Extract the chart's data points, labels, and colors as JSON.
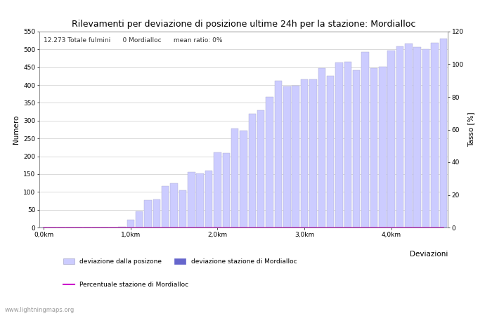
{
  "title": "Rilevamenti per deviazione di posizione ultime 24h per la stazione: Mordialloc",
  "subtitle": "12.273 Totale fulmini      0 Mordialloc      mean ratio: 0%",
  "xlabel": "Deviazioni",
  "ylabel_left": "Numero",
  "ylabel_right": "Tasso [%]",
  "bar_values": [
    0,
    0,
    0,
    0,
    0,
    0,
    0,
    0,
    0,
    1,
    22,
    46,
    77,
    78,
    116,
    125,
    105,
    155,
    152,
    160,
    210,
    209,
    278,
    272,
    320,
    330,
    367,
    412,
    397,
    398,
    415,
    416,
    448,
    425,
    463,
    465,
    441,
    493,
    448,
    451,
    497,
    508,
    516,
    507,
    500,
    519,
    531
  ],
  "bar_color": "#ccccff",
  "bar_edge_color": "#aaaacc",
  "station_bar_values": [
    0,
    0,
    0,
    0,
    0,
    0,
    0,
    0,
    0,
    0,
    0,
    0,
    0,
    0,
    0,
    0,
    0,
    0,
    0,
    0,
    0,
    0,
    0,
    0,
    0,
    0,
    0,
    0,
    0,
    0,
    0,
    0,
    0,
    0,
    0,
    0,
    0,
    0,
    0,
    0,
    0,
    0,
    0,
    0,
    0,
    0,
    0
  ],
  "station_bar_color": "#6666cc",
  "ratio_values": [
    0,
    0,
    0,
    0,
    0,
    0,
    0,
    0,
    0,
    0,
    0,
    0,
    0,
    0,
    0,
    0,
    0,
    0,
    0,
    0,
    0,
    0,
    0,
    0,
    0,
    0,
    0,
    0,
    0,
    0,
    0,
    0,
    0,
    0,
    0,
    0,
    0,
    0,
    0,
    0,
    0,
    0,
    0,
    0,
    0,
    0,
    0
  ],
  "ratio_color": "#cc00cc",
  "ylim_left": [
    0,
    550
  ],
  "ylim_right": [
    0,
    120
  ],
  "yticks_left": [
    0,
    50,
    100,
    150,
    200,
    250,
    300,
    350,
    400,
    450,
    500,
    550
  ],
  "yticks_right": [
    0,
    20,
    40,
    60,
    80,
    100,
    120
  ],
  "xtick_positions": [
    0,
    10,
    20,
    30,
    40
  ],
  "xtick_labels": [
    "0,0km",
    "1,0km",
    "2,0km",
    "3,0km",
    "4,0km"
  ],
  "n_bars": 47,
  "bg_color": "#ffffff",
  "grid_color": "#cccccc",
  "watermark": "www.lightningmaps.org",
  "legend_entries": [
    {
      "label": "deviazione dalla posizone",
      "color": "#ccccff",
      "type": "bar"
    },
    {
      "label": "deviazione stazione di Mordialloc",
      "color": "#6666cc",
      "type": "bar"
    },
    {
      "label": "Percentuale stazione di Mordialloc",
      "color": "#cc00cc",
      "type": "line"
    }
  ]
}
